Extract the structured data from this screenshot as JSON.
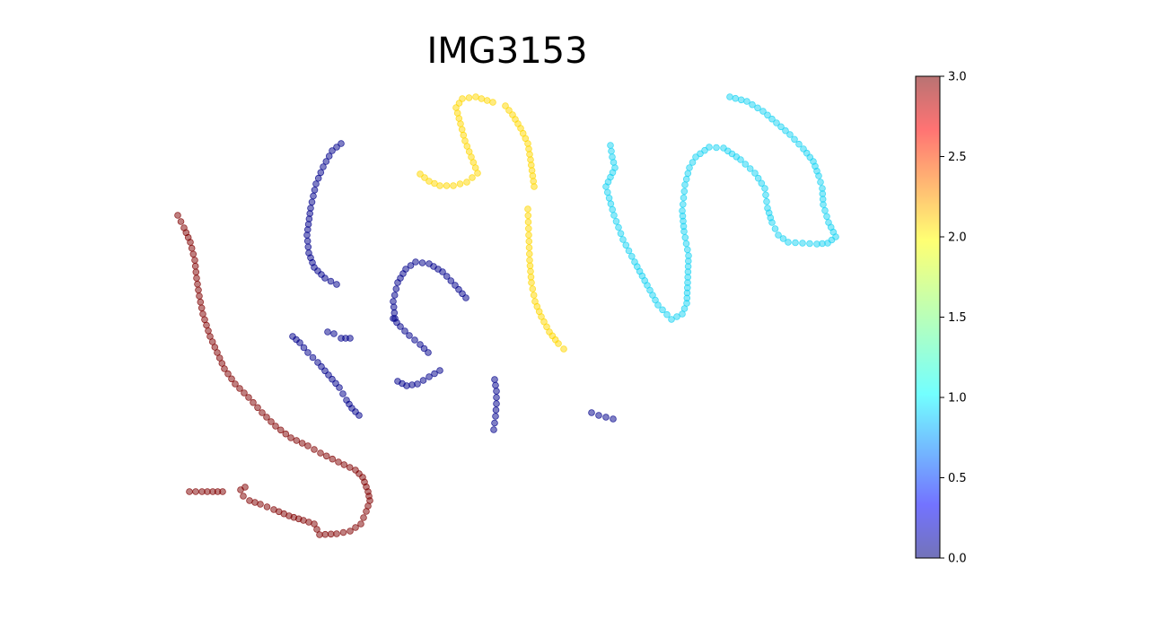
{
  "chart_data": {
    "type": "scatter",
    "title": "IMG3153",
    "xlabel": "",
    "ylabel": "",
    "axes_visible": false,
    "grid": false,
    "marker_alpha": 0.5,
    "colormap": "jet",
    "colorbar": {
      "vmin": 0.0,
      "vmax": 3.0,
      "ticks": [
        "0.0",
        "0.5",
        "1.0",
        "1.5",
        "2.0",
        "2.5",
        "3.0"
      ],
      "position": "right"
    },
    "series": [
      {
        "value": 0.0,
        "color": "#00008b",
        "strokes": [
          [
            [
              380,
              160
            ],
            [
              370,
              168
            ],
            [
              360,
              186
            ],
            [
              352,
              205
            ],
            [
              346,
              232
            ],
            [
              342,
              262
            ],
            [
              344,
              282
            ],
            [
              350,
              298
            ],
            [
              362,
              310
            ],
            [
              375,
              317
            ]
          ],
          [
            [
              440,
              355
            ],
            [
              438,
              336
            ],
            [
              443,
              315
            ],
            [
              452,
              300
            ],
            [
              463,
              292
            ],
            [
              478,
              294
            ],
            [
              493,
              303
            ],
            [
              507,
              318
            ],
            [
              519,
              332
            ]
          ],
          [
            [
              438,
              355
            ],
            [
              446,
              364
            ],
            [
              456,
              374
            ],
            [
              468,
              384
            ],
            [
              477,
              393
            ]
          ],
          [
            [
              326,
              375
            ],
            [
              334,
              382
            ],
            [
              343,
              393
            ],
            [
              354,
              404
            ],
            [
              366,
              418
            ],
            [
              378,
              432
            ],
            [
              386,
              446
            ],
            [
              392,
              455
            ],
            [
              400,
              463
            ]
          ],
          [
            [
              365,
              370
            ],
            [
              372,
              372
            ],
            [
              380,
              377
            ],
            [
              390,
              377
            ]
          ],
          [
            [
              443,
              425
            ],
            [
              453,
              430
            ],
            [
              465,
              428
            ],
            [
              478,
              420
            ],
            [
              490,
              413
            ]
          ],
          [
            [
              551,
              423
            ],
            [
              553,
              436
            ],
            [
              553,
              450
            ],
            [
              552,
              464
            ],
            [
              550,
              479
            ]
          ],
          [
            [
              659,
              460
            ],
            [
              667,
              463
            ],
            [
              675,
              465
            ],
            [
              683,
              467
            ]
          ]
        ]
      },
      {
        "value": 1.0,
        "color": "#19d3f3",
        "strokes": [
          [
            [
              680,
              162
            ],
            [
              682,
              175
            ],
            [
              685,
              187
            ],
            [
              675,
              208
            ],
            [
              684,
              240
            ],
            [
              694,
              267
            ],
            [
              707,
              292
            ],
            [
              721,
              318
            ],
            [
              733,
              340
            ],
            [
              748,
              356
            ],
            [
              760,
              350
            ],
            [
              765,
              338
            ],
            [
              766,
              315
            ],
            [
              767,
              285
            ],
            [
              762,
              258
            ],
            [
              760,
              235
            ],
            [
              763,
              206
            ],
            [
              768,
              187
            ],
            [
              775,
              175
            ],
            [
              790,
              164
            ],
            [
              806,
              165
            ],
            [
              825,
              178
            ],
            [
              841,
              193
            ],
            [
              852,
              210
            ],
            [
              855,
              232
            ],
            [
              860,
              248
            ],
            [
              867,
              262
            ],
            [
              878,
              270
            ],
            [
              894,
              271
            ],
            [
              910,
              272
            ],
            [
              922,
              271
            ],
            [
              931,
              264
            ],
            [
              923,
              248
            ],
            [
              917,
              228
            ],
            [
              916,
              210
            ],
            [
              912,
              196
            ],
            [
              906,
              180
            ],
            [
              895,
              166
            ],
            [
              880,
              150
            ],
            [
              865,
              137
            ],
            [
              850,
              124
            ],
            [
              832,
              113
            ],
            [
              813,
              108
            ]
          ]
        ]
      },
      {
        "value": 2.0,
        "color": "#ffd700",
        "strokes": [
          [
            [
              468,
              194
            ],
            [
              478,
              202
            ],
            [
              490,
              207
            ],
            [
              505,
              207
            ],
            [
              520,
              203
            ],
            [
              532,
              193
            ],
            [
              525,
              175
            ],
            [
              518,
              157
            ],
            [
              513,
              138
            ],
            [
              508,
              120
            ],
            [
              515,
              110
            ],
            [
              530,
              108
            ],
            [
              549,
              114
            ]
          ],
          [
            [
              563,
              118
            ],
            [
              571,
              128
            ],
            [
              580,
              143
            ],
            [
              588,
              160
            ],
            [
              591,
              178
            ],
            [
              595,
              208
            ]
          ],
          [
            [
              588,
              233
            ],
            [
              589,
              262
            ],
            [
              590,
              290
            ],
            [
              592,
              315
            ],
            [
              596,
              336
            ],
            [
              603,
              353
            ],
            [
              612,
              370
            ],
            [
              622,
              383
            ],
            [
              628,
              389
            ]
          ]
        ]
      },
      {
        "value": 3.0,
        "color": "#800000",
        "strokes": [
          [
            [
              198,
              240
            ],
            [
              205,
              254
            ],
            [
              212,
              270
            ],
            [
              217,
              290
            ],
            [
              219,
              310
            ],
            [
              222,
              330
            ],
            [
              226,
              350
            ],
            [
              234,
              375
            ],
            [
              242,
              393
            ],
            [
              250,
              411
            ],
            [
              262,
              428
            ],
            [
              277,
              443
            ],
            [
              292,
              460
            ],
            [
              307,
              475
            ],
            [
              324,
              488
            ],
            [
              343,
              497
            ],
            [
              357,
              505
            ],
            [
              377,
              515
            ],
            [
              396,
              524
            ],
            [
              404,
              532
            ],
            [
              410,
              548
            ],
            [
              412,
              558
            ],
            [
              408,
              570
            ],
            [
              402,
              584
            ],
            [
              390,
              592
            ],
            [
              375,
              595
            ],
            [
              356,
              596
            ],
            [
              350,
              584
            ],
            [
              338,
              580
            ],
            [
              322,
              575
            ],
            [
              305,
              568
            ],
            [
              290,
              562
            ],
            [
              278,
              558
            ],
            [
              271,
              553
            ],
            [
              268,
              546
            ],
            [
              273,
              543
            ]
          ],
          [
            [
              211,
              548
            ],
            [
              225,
              548
            ],
            [
              237,
              548
            ],
            [
              248,
              548
            ]
          ]
        ]
      }
    ]
  }
}
